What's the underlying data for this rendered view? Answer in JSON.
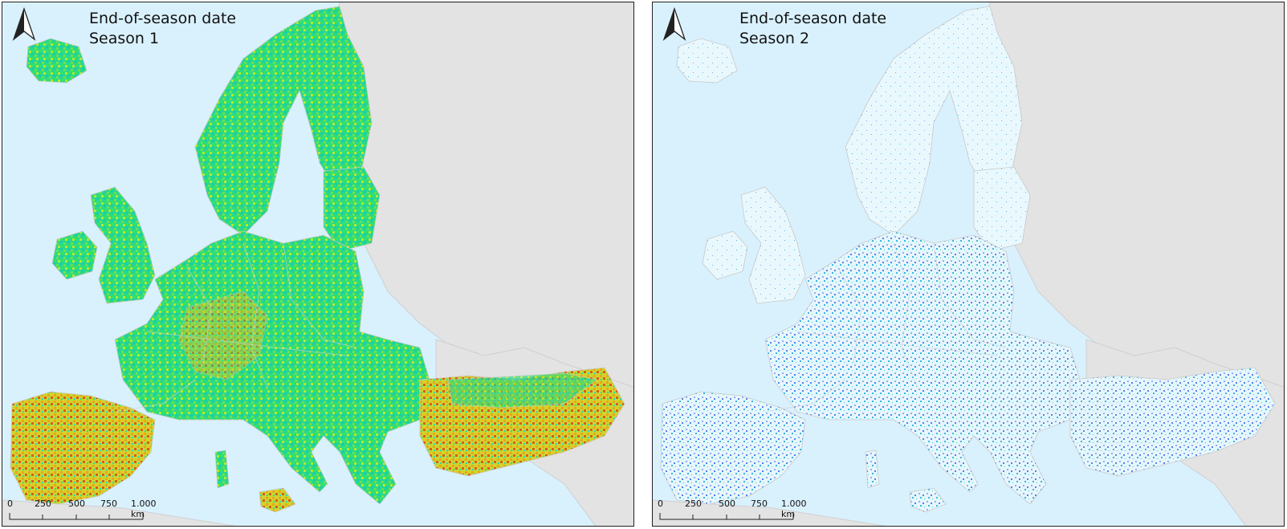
{
  "maps": [
    {
      "title_line1": "End-of-season date",
      "title_line2": "Season 1",
      "style": {
        "land_palette": [
          "#2ee860",
          "#17d89c",
          "#1fcfc0",
          "#7ee83a",
          "#b8ec2a",
          "#e4c81e",
          "#f0901a",
          "#e0501a"
        ],
        "bare_land": "#e3e3e3",
        "sea": "#d9f1fd"
      }
    },
    {
      "title_line1": "End-of-season date",
      "title_line2": "Season 2",
      "style": {
        "land_palette": [
          "#e9f8fd",
          "#d6eefb",
          "#a8c8f6",
          "#7d9cf0",
          "#5b7fe8",
          "#38b6e0",
          "#35d8c4"
        ],
        "bare_land": "#e3e3e3",
        "sea": "#d9f1fd"
      }
    }
  ],
  "scalebar": {
    "labels": [
      "0",
      "250",
      "500",
      "750",
      "1.000 km"
    ]
  },
  "icons": {
    "north_arrow": "north-arrow-icon"
  }
}
